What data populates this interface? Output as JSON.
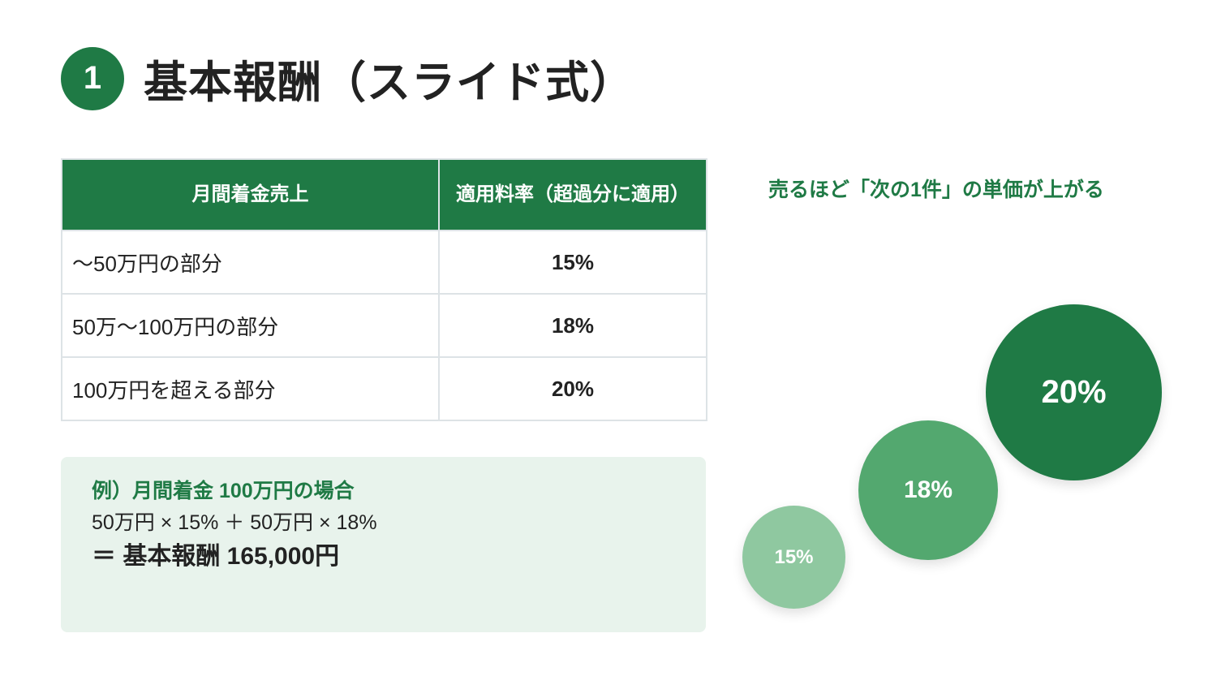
{
  "header": {
    "number": "1",
    "title": "基本報酬（スライド式）"
  },
  "rate_table": {
    "columns": [
      "月間着金売上",
      "適用料率（超過分に適用）"
    ],
    "rows": [
      {
        "range": "〜50万円の部分",
        "rate": "15%"
      },
      {
        "range": "50万〜100万円の部分",
        "rate": "18%"
      },
      {
        "range": "100万円を超える部分",
        "rate": "20%"
      }
    ]
  },
  "example": {
    "heading": "例）月間着金 100万円の場合",
    "calc": "50万円 × 15% ＋ 50万円 × 18%",
    "result": "＝ 基本報酬 165,000円"
  },
  "visual": {
    "tagline": "売るほど「次の1件」の単価が上がる",
    "bubbles": [
      {
        "label": "15%",
        "color": "#8fc8a0"
      },
      {
        "label": "18%",
        "color": "#53a86f"
      },
      {
        "label": "20%",
        "color": "#1f7a45"
      }
    ]
  },
  "colors": {
    "accent": "#1f7a45",
    "example_bg": "#e8f3ec",
    "table_border": "#dde3e6"
  }
}
